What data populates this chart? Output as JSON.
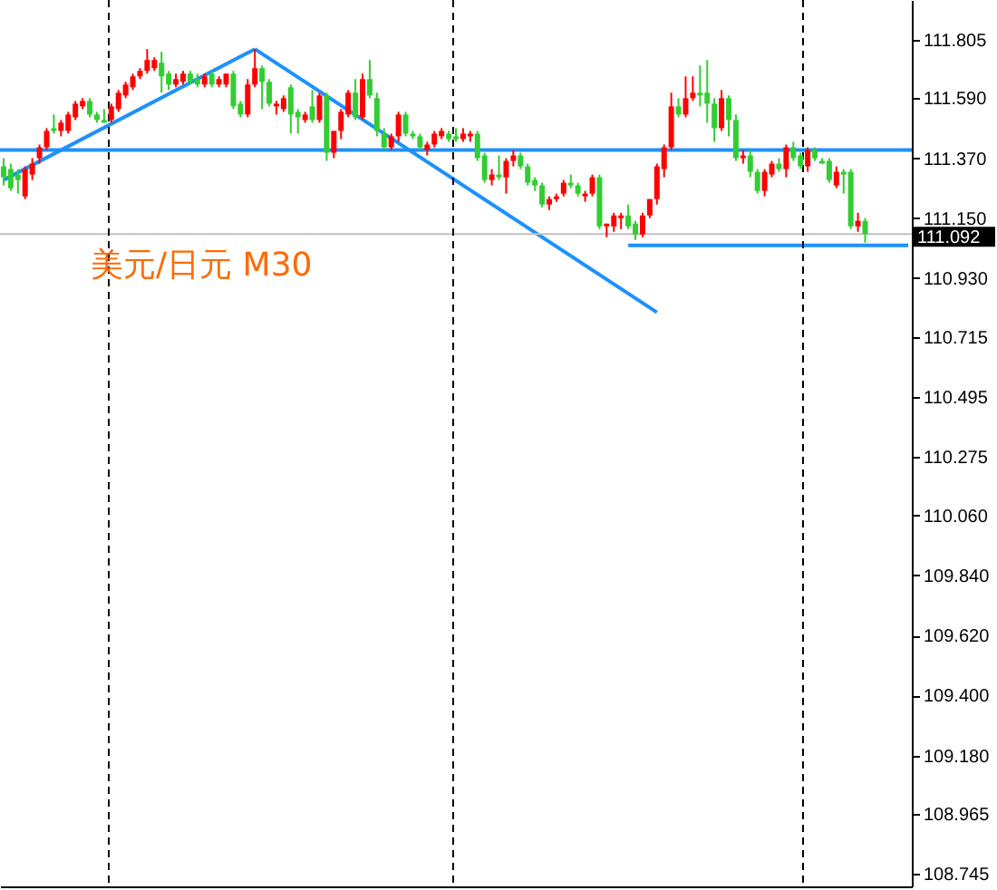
{
  "chart_data": {
    "type": "candlestick",
    "annotations": [
      "美元/日元 M30"
    ],
    "categories": [
      null,
      null,
      null,
      null,
      null,
      null,
      null,
      null,
      null,
      null,
      null,
      null,
      null,
      null,
      null,
      null,
      null,
      null,
      null,
      null,
      null,
      null,
      null,
      null,
      null,
      null,
      null,
      null,
      null,
      null,
      null,
      null,
      null,
      null,
      null,
      null,
      null,
      null,
      null,
      null,
      null,
      null,
      null,
      null,
      null,
      null,
      null,
      null,
      null,
      null,
      null,
      null,
      null,
      null,
      null,
      null,
      null,
      null,
      null,
      null,
      null,
      null,
      null,
      null,
      null,
      null,
      null,
      null,
      null,
      null,
      null,
      null,
      null,
      null,
      null,
      null,
      null,
      null,
      null,
      null,
      null,
      null,
      null,
      null,
      null,
      null,
      null,
      null,
      null,
      null,
      null,
      null,
      null,
      null,
      null,
      null,
      null,
      null,
      null,
      null,
      null,
      null,
      null,
      null,
      null,
      null,
      null,
      null,
      null,
      null,
      null,
      null,
      null,
      null,
      null,
      null,
      null,
      null,
      null,
      null,
      null,
      null,
      null,
      null,
      null,
      null,
      null
    ],
    "ohlc": [
      [
        111.34,
        111.37,
        111.27,
        111.3
      ],
      [
        111.33,
        111.35,
        111.25,
        111.26
      ],
      [
        111.31,
        111.33,
        111.24,
        111.29
      ],
      [
        111.23,
        111.34,
        111.22,
        111.33
      ],
      [
        111.31,
        111.37,
        111.29,
        111.35
      ],
      [
        111.37,
        111.42,
        111.35,
        111.41
      ],
      [
        111.41,
        111.48,
        111.4,
        111.47
      ],
      [
        111.48,
        111.53,
        111.46,
        111.47
      ],
      [
        111.47,
        111.51,
        111.45,
        111.5
      ],
      [
        111.47,
        111.54,
        111.46,
        111.53
      ],
      [
        111.52,
        111.58,
        111.51,
        111.57
      ],
      [
        111.56,
        111.59,
        111.55,
        111.58
      ],
      [
        111.58,
        111.59,
        111.52,
        111.53
      ],
      [
        111.53,
        111.54,
        111.5,
        111.51
      ],
      [
        111.51,
        111.55,
        111.5,
        111.5
      ],
      [
        111.51,
        111.57,
        111.5,
        111.56
      ],
      [
        111.55,
        111.62,
        111.54,
        111.61
      ],
      [
        111.6,
        111.65,
        111.59,
        111.64
      ],
      [
        111.63,
        111.68,
        111.62,
        111.67
      ],
      [
        111.67,
        111.7,
        111.66,
        111.69
      ],
      [
        111.69,
        111.77,
        111.68,
        111.73
      ],
      [
        111.7,
        111.74,
        111.69,
        111.73
      ],
      [
        111.72,
        111.76,
        111.61,
        111.67
      ],
      [
        111.68,
        111.69,
        111.62,
        111.64
      ],
      [
        111.64,
        111.68,
        111.63,
        111.66
      ],
      [
        111.65,
        111.69,
        111.64,
        111.68
      ],
      [
        111.68,
        111.69,
        111.64,
        111.65
      ],
      [
        111.66,
        111.68,
        111.63,
        111.64
      ],
      [
        111.64,
        111.68,
        111.63,
        111.67
      ],
      [
        111.68,
        111.69,
        111.63,
        111.64
      ],
      [
        111.64,
        111.67,
        111.63,
        111.66
      ],
      [
        111.64,
        111.68,
        111.63,
        111.68
      ],
      [
        111.68,
        111.69,
        111.55,
        111.56
      ],
      [
        111.57,
        111.58,
        111.52,
        111.53
      ],
      [
        111.53,
        111.66,
        111.52,
        111.64
      ],
      [
        111.64,
        111.77,
        111.63,
        111.7
      ],
      [
        111.7,
        111.71,
        111.55,
        111.65
      ],
      [
        111.65,
        111.66,
        111.56,
        111.57
      ],
      [
        111.56,
        111.58,
        111.53,
        111.57
      ],
      [
        111.55,
        111.6,
        111.54,
        111.59
      ],
      [
        111.63,
        111.64,
        111.46,
        111.53
      ],
      [
        111.54,
        111.55,
        111.46,
        111.52
      ],
      [
        111.51,
        111.54,
        111.5,
        111.53
      ],
      [
        111.56,
        111.62,
        111.5,
        111.51
      ],
      [
        111.51,
        111.61,
        111.5,
        111.6
      ],
      [
        111.6,
        111.61,
        111.36,
        111.39
      ],
      [
        111.39,
        111.47,
        111.37,
        111.47
      ],
      [
        111.47,
        111.55,
        111.44,
        111.54
      ],
      [
        111.53,
        111.62,
        111.52,
        111.61
      ],
      [
        111.61,
        111.66,
        111.51,
        111.52
      ],
      [
        111.52,
        111.68,
        111.51,
        111.66
      ],
      [
        111.66,
        111.73,
        111.59,
        111.6
      ],
      [
        111.59,
        111.61,
        111.45,
        111.47
      ],
      [
        111.46,
        111.48,
        111.4,
        111.41
      ],
      [
        111.41,
        111.46,
        111.4,
        111.45
      ],
      [
        111.45,
        111.54,
        111.43,
        111.53
      ],
      [
        111.53,
        111.54,
        111.45,
        111.46
      ],
      [
        111.46,
        111.47,
        111.44,
        111.45
      ],
      [
        111.45,
        111.46,
        111.4,
        111.41
      ],
      [
        111.4,
        111.43,
        111.38,
        111.42
      ],
      [
        111.42,
        111.47,
        111.41,
        111.46
      ],
      [
        111.45,
        111.48,
        111.44,
        111.47
      ],
      [
        111.46,
        111.47,
        111.43,
        111.44
      ],
      [
        111.45,
        111.48,
        111.43,
        111.44
      ],
      [
        111.44,
        111.48,
        111.43,
        111.46
      ],
      [
        111.45,
        111.47,
        111.43,
        111.46
      ],
      [
        111.46,
        111.47,
        111.36,
        111.37
      ],
      [
        111.38,
        111.39,
        111.28,
        111.29
      ],
      [
        111.29,
        111.33,
        111.27,
        111.31
      ],
      [
        111.31,
        111.38,
        111.29,
        111.3
      ],
      [
        111.3,
        111.37,
        111.24,
        111.36
      ],
      [
        111.36,
        111.4,
        111.34,
        111.38
      ],
      [
        111.38,
        111.39,
        111.33,
        111.34
      ],
      [
        111.34,
        111.35,
        111.27,
        111.28
      ],
      [
        111.29,
        111.3,
        111.25,
        111.27
      ],
      [
        111.27,
        111.28,
        111.19,
        111.2
      ],
      [
        111.2,
        111.23,
        111.18,
        111.22
      ],
      [
        111.22,
        111.24,
        111.21,
        111.23
      ],
      [
        111.24,
        111.29,
        111.23,
        111.28
      ],
      [
        111.28,
        111.31,
        111.26,
        111.27
      ],
      [
        111.27,
        111.28,
        111.23,
        111.24
      ],
      [
        111.23,
        111.25,
        111.21,
        111.24
      ],
      [
        111.24,
        111.31,
        111.23,
        111.3
      ],
      [
        111.3,
        111.31,
        111.11,
        111.12
      ],
      [
        111.12,
        111.13,
        111.08,
        111.13
      ],
      [
        111.12,
        111.17,
        111.1,
        111.16
      ],
      [
        111.15,
        111.17,
        111.11,
        111.16
      ],
      [
        111.16,
        111.2,
        111.11,
        111.12
      ],
      [
        111.13,
        111.14,
        111.07,
        111.09
      ],
      [
        111.09,
        111.17,
        111.08,
        111.16
      ],
      [
        111.16,
        111.22,
        111.15,
        111.22
      ],
      [
        111.22,
        111.35,
        111.2,
        111.34
      ],
      [
        111.33,
        111.42,
        111.3,
        111.41
      ],
      [
        111.41,
        111.61,
        111.4,
        111.56
      ],
      [
        111.56,
        111.59,
        111.52,
        111.53
      ],
      [
        111.53,
        111.67,
        111.52,
        111.59
      ],
      [
        111.59,
        111.67,
        111.58,
        111.61
      ],
      [
        111.61,
        111.71,
        111.56,
        111.6
      ],
      [
        111.61,
        111.73,
        111.5,
        111.57
      ],
      [
        111.57,
        111.59,
        111.43,
        111.48
      ],
      [
        111.48,
        111.62,
        111.47,
        111.59
      ],
      [
        111.59,
        111.6,
        111.45,
        111.51
      ],
      [
        111.51,
        111.53,
        111.36,
        111.37
      ],
      [
        111.37,
        111.4,
        111.35,
        111.38
      ],
      [
        111.38,
        111.4,
        111.3,
        111.32
      ],
      [
        111.32,
        111.33,
        111.24,
        111.25
      ],
      [
        111.25,
        111.33,
        111.23,
        111.32
      ],
      [
        111.31,
        111.36,
        111.3,
        111.35
      ],
      [
        111.35,
        111.37,
        111.32,
        111.33
      ],
      [
        111.33,
        111.42,
        111.3,
        111.41
      ],
      [
        111.41,
        111.43,
        111.36,
        111.37
      ],
      [
        111.38,
        111.39,
        111.33,
        111.34
      ],
      [
        111.34,
        111.41,
        111.32,
        111.4
      ],
      [
        111.4,
        111.41,
        111.36,
        111.37
      ],
      [
        111.36,
        111.37,
        111.35,
        111.35
      ],
      [
        111.36,
        111.37,
        111.28,
        111.29
      ],
      [
        111.27,
        111.34,
        111.26,
        111.32
      ],
      [
        111.32,
        111.33,
        111.24,
        111.31
      ],
      [
        111.32,
        111.33,
        111.11,
        111.12
      ],
      [
        111.12,
        111.17,
        111.1,
        111.14
      ],
      [
        111.14,
        111.15,
        111.06,
        111.092
      ],
      null,
      null,
      null,
      null,
      null,
      null
    ],
    "colors": [
      "#32cd32",
      "#32cd32",
      "#32cd32",
      "#ff0000",
      "#ff0000",
      "#ff0000",
      "#ff0000",
      "#32cd32",
      "#ff0000",
      "#ff0000",
      "#ff0000",
      "#ff0000",
      "#32cd32",
      "#32cd32",
      "#32cd32",
      "#ff0000",
      "#ff0000",
      "#ff0000",
      "#ff0000",
      "#ff0000",
      "#ff0000",
      "#ff0000",
      "#32cd32",
      "#32cd32",
      "#ff0000",
      "#ff0000",
      "#32cd32",
      "#32cd32",
      "#ff0000",
      "#32cd32",
      "#ff0000",
      "#ff0000",
      "#32cd32",
      "#32cd32",
      "#ff0000",
      "#ff0000",
      "#32cd32",
      "#32cd32",
      "#ff0000",
      "#ff0000",
      "#32cd32",
      "#32cd32",
      "#ff0000",
      "#32cd32",
      "#ff0000",
      "#32cd32",
      "#ff0000",
      "#ff0000",
      "#ff0000",
      "#32cd32",
      "#ff0000",
      "#32cd32",
      "#32cd32",
      "#32cd32",
      "#ff0000",
      "#ff0000",
      "#32cd32",
      "#32cd32",
      "#32cd32",
      "#ff0000",
      "#ff0000",
      "#ff0000",
      "#32cd32",
      "#32cd32",
      "#ff0000",
      "#ff0000",
      "#32cd32",
      "#32cd32",
      "#ff0000",
      "#32cd32",
      "#ff0000",
      "#ff0000",
      "#32cd32",
      "#32cd32",
      "#32cd32",
      "#32cd32",
      "#ff0000",
      "#ff0000",
      "#ff0000",
      "#32cd32",
      "#32cd32",
      "#ff0000",
      "#ff0000",
      "#32cd32",
      "#ff0000",
      "#ff0000",
      "#ff0000",
      "#32cd32",
      "#32cd32",
      "#ff0000",
      "#ff0000",
      "#ff0000",
      "#ff0000",
      "#ff0000",
      "#32cd32",
      "#ff0000",
      "#ff0000",
      "#32cd32",
      "#32cd32",
      "#32cd32",
      "#ff0000",
      "#32cd32",
      "#32cd32",
      "#ff0000",
      "#32cd32",
      "#32cd32",
      "#ff0000",
      "#ff0000",
      "#32cd32",
      "#ff0000",
      "#32cd32",
      "#32cd32",
      "#ff0000",
      "#32cd32",
      "#32cd32",
      "#32cd32",
      "#ff0000",
      "#32cd32",
      "#32cd32",
      "#ff0000",
      "#32cd32",
      null,
      null,
      null,
      null,
      null,
      null
    ],
    "series": [
      {
        "type": "line",
        "color": "#1e90ff",
        "values": [
          111.29,
          null,
          null,
          null,
          null,
          null,
          null,
          null,
          null,
          null,
          null,
          null,
          null,
          null,
          null,
          null,
          null,
          null,
          null,
          null,
          null,
          null,
          null,
          null,
          null,
          null,
          null,
          null,
          null,
          null,
          null,
          null,
          null,
          null,
          null,
          111.77,
          null,
          null,
          null,
          null,
          null,
          null,
          null,
          null,
          null,
          null,
          null,
          null,
          null,
          null,
          null,
          null,
          null,
          null,
          null,
          null,
          null,
          null,
          null,
          null,
          null,
          null,
          null,
          null,
          null,
          null,
          null,
          null,
          null,
          null,
          null,
          null,
          null,
          null,
          null,
          null,
          null,
          null,
          null,
          null,
          null,
          null,
          null,
          null,
          null,
          null,
          null,
          null,
          null,
          null,
          null,
          null,
          null,
          null,
          null,
          null,
          null,
          null,
          null,
          null,
          null,
          null,
          null,
          null,
          null,
          null,
          null,
          null,
          null,
          null,
          null,
          null,
          null,
          null,
          null,
          null,
          null,
          null,
          null,
          null,
          null,
          null,
          null,
          null,
          null,
          null,
          null
        ]
      },
      {
        "type": "line",
        "color": "#1e90ff",
        "values": [
          null,
          null,
          null,
          null,
          null,
          null,
          null,
          null,
          null,
          null,
          null,
          null,
          null,
          null,
          null,
          null,
          null,
          null,
          null,
          null,
          null,
          null,
          null,
          null,
          null,
          null,
          null,
          null,
          null,
          null,
          null,
          null,
          null,
          null,
          null,
          111.77,
          null,
          null,
          null,
          null,
          null,
          null,
          null,
          null,
          null,
          null,
          null,
          null,
          null,
          null,
          null,
          null,
          null,
          null,
          null,
          null,
          null,
          null,
          null,
          null,
          null,
          null,
          null,
          null,
          null,
          null,
          null,
          null,
          null,
          null,
          null,
          null,
          null,
          null,
          null,
          null,
          null,
          null,
          null,
          null,
          null,
          null,
          null,
          null,
          null,
          null,
          null,
          null,
          null,
          null,
          null,
          110.805,
          null,
          null,
          null,
          null,
          null,
          null,
          null,
          null,
          null,
          null,
          null,
          null,
          null,
          null,
          null,
          null,
          null,
          null,
          null,
          null,
          null,
          null,
          null,
          null,
          null,
          null,
          null,
          null,
          null,
          null,
          null,
          null,
          null,
          null,
          null
        ]
      },
      {
        "type": "line",
        "color": "#1e90ff",
        "values": [
          null,
          null,
          null,
          null,
          null,
          null,
          null,
          null,
          null,
          null,
          null,
          null,
          null,
          null,
          null,
          null,
          null,
          null,
          null,
          null,
          null,
          null,
          null,
          null,
          null,
          null,
          null,
          null,
          null,
          null,
          null,
          null,
          null,
          null,
          null,
          null,
          null,
          null,
          null,
          null,
          null,
          null,
          null,
          null,
          null,
          null,
          null,
          null,
          null,
          null,
          null,
          null,
          null,
          null,
          null,
          null,
          null,
          null,
          null,
          null,
          null,
          null,
          null,
          null,
          null,
          null,
          null,
          null,
          null,
          null,
          null,
          null,
          null,
          null,
          null,
          null,
          null,
          null,
          null,
          null,
          null,
          null,
          null,
          null,
          null,
          null,
          null,
          111.05,
          null,
          null,
          null,
          null,
          null,
          null,
          null,
          null,
          null,
          null,
          null,
          null,
          null,
          null,
          null,
          null,
          null,
          null,
          null,
          null,
          null,
          null,
          null,
          null,
          null,
          null,
          null,
          null,
          null,
          null,
          null,
          null,
          null,
          null,
          null,
          null,
          null,
          null,
          111.05
        ]
      }
    ],
    "ref_lines": [
      {
        "axis": "y",
        "value": 111.4,
        "label": null,
        "color": "#1e90ff"
      },
      {
        "axis": "y",
        "value": 111.092,
        "label": "111.092",
        "color": "#c0c0c0"
      }
    ],
    "ylim": [
      108.7,
      111.95
    ],
    "yticks": [
      {
        "value": 108.745,
        "label": "108.745"
      },
      {
        "value": 108.965,
        "label": "108.965"
      },
      {
        "value": 109.18,
        "label": "109.180"
      },
      {
        "value": 109.4,
        "label": "109.400"
      },
      {
        "value": 109.62,
        "label": "109.620"
      },
      {
        "value": 109.84,
        "label": "109.840"
      },
      {
        "value": 110.06,
        "label": "110.060"
      },
      {
        "value": 110.275,
        "label": "110.275"
      },
      {
        "value": 110.495,
        "label": "110.495"
      },
      {
        "value": 110.715,
        "label": "110.715"
      },
      {
        "value": 110.93,
        "label": "110.930"
      },
      {
        "value": 111.15,
        "label": "111.150"
      },
      {
        "value": 111.37,
        "label": "111.370"
      },
      {
        "value": 111.59,
        "label": "111.590"
      },
      {
        "value": 111.805,
        "label": "111.805"
      }
    ],
    "tick_labels": "y"
  }
}
